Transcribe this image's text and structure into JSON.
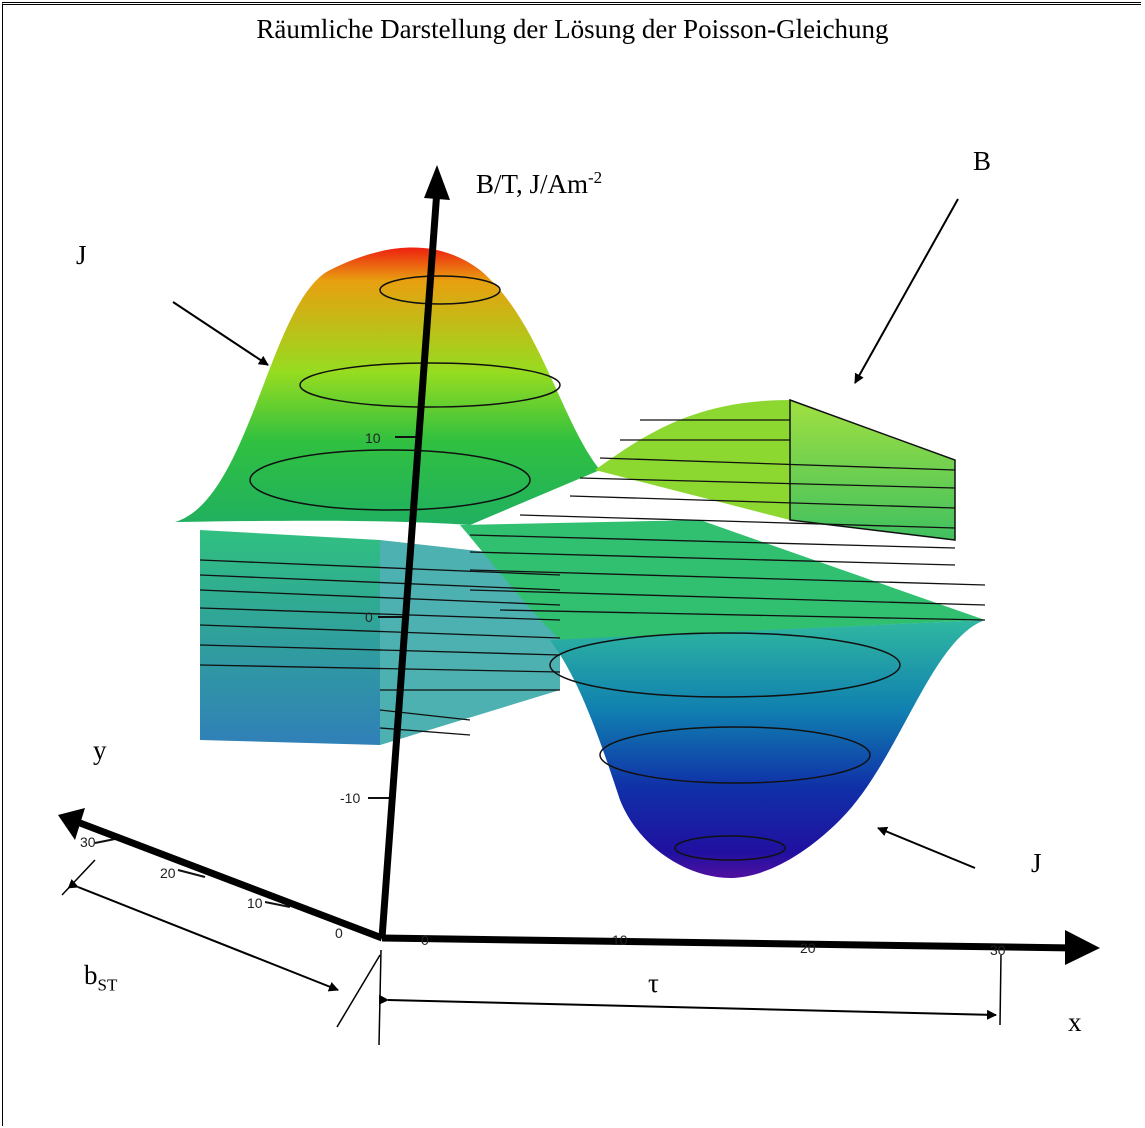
{
  "title": "Räumliche Darstellung der Lösung der Poisson-Gleichung",
  "axis_vertical_label": {
    "text": "B/T, J/Am",
    "sup": "-2"
  },
  "axis_x_label": "x",
  "axis_y_label": "y",
  "annotations": {
    "j_top_left": "J",
    "b_top_right": "B",
    "j_bottom_right": "J"
  },
  "dimensions": {
    "tau": "τ",
    "b_st": {
      "text": "b",
      "sub": "ST"
    }
  },
  "ticks": {
    "vertical": [
      "10",
      "0",
      "-10"
    ],
    "x": [
      "0",
      "10",
      "20",
      "30"
    ],
    "y": [
      "30",
      "20",
      "10",
      "0"
    ]
  },
  "colors": {
    "peak": "#ee2010",
    "orange": "#e8a010",
    "green_light": "#96dc20",
    "green": "#30c040",
    "teal": "#30b8a0",
    "blue": "#1060a8",
    "dark_blue": "#1020a0",
    "violet": "#5010a0"
  }
}
